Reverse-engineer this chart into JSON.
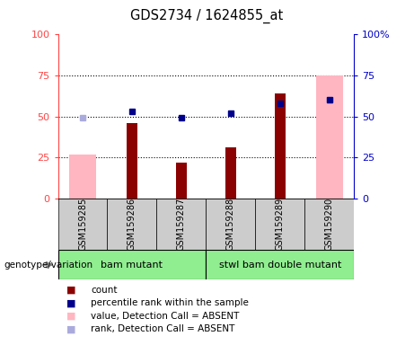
{
  "title": "GDS2734 / 1624855_at",
  "samples": [
    "GSM159285",
    "GSM159286",
    "GSM159287",
    "GSM159288",
    "GSM159289",
    "GSM159290"
  ],
  "count_values": [
    null,
    46,
    22,
    31,
    64,
    null
  ],
  "percentile_values": [
    null,
    53,
    49,
    52,
    58,
    60
  ],
  "absent_value": [
    27,
    null,
    null,
    null,
    null,
    75
  ],
  "absent_rank": [
    49,
    null,
    null,
    null,
    null,
    60
  ],
  "group1_label": "bam mutant",
  "group2_label": "stwl bam double mutant",
  "group1_samples": [
    0,
    1,
    2
  ],
  "group2_samples": [
    3,
    4,
    5
  ],
  "ylim": [
    0,
    100
  ],
  "yticks": [
    0,
    25,
    50,
    75,
    100
  ],
  "ytick_labels_left": [
    "0",
    "25",
    "50",
    "75",
    "100"
  ],
  "ytick_labels_right": [
    "0",
    "25",
    "50",
    "75",
    "100%"
  ],
  "bar_color_count": "#8B0000",
  "bar_color_absent_value": "#FFB6C1",
  "dot_color_percentile": "#00008B",
  "dot_color_absent_rank": "#AAAADD",
  "background_plot": "#FFFFFF",
  "background_xlabels": "#CCCCCC",
  "background_group": "#90EE90",
  "axis_left_color": "#FF4444",
  "axis_right_color": "#0000CC",
  "legend_items": [
    {
      "color": "#8B0000",
      "label": "count"
    },
    {
      "color": "#00008B",
      "label": "percentile rank within the sample"
    },
    {
      "color": "#FFB6C1",
      "label": "value, Detection Call = ABSENT"
    },
    {
      "color": "#AAAADD",
      "label": "rank, Detection Call = ABSENT"
    }
  ]
}
